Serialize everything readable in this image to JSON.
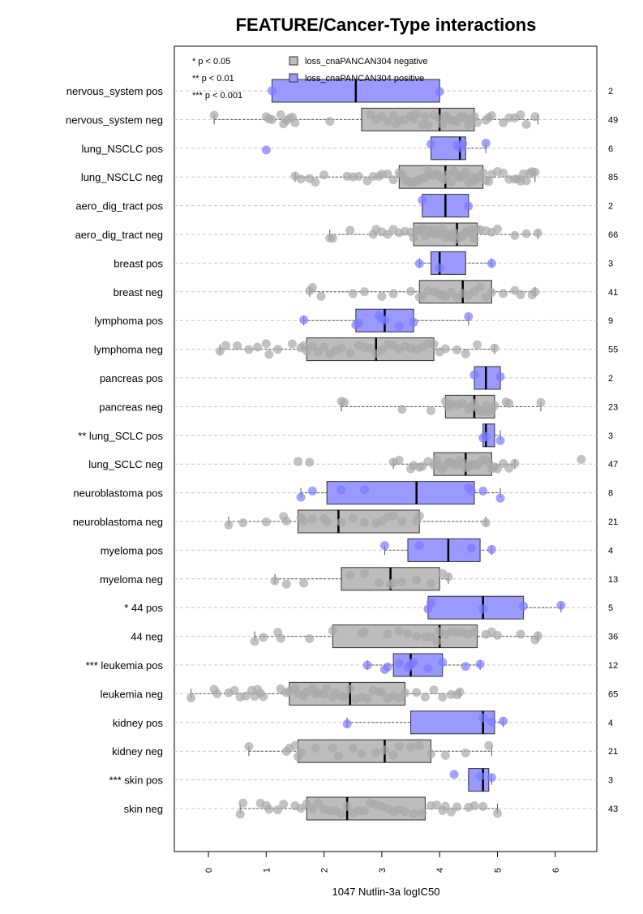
{
  "chart_data": {
    "type": "boxplot",
    "title": "FEATURE/Cancer-Type interactions",
    "xlabel": "1047 Nutlin-3a logIC50",
    "ylabel": "",
    "xlim": [
      -0.6,
      6.7
    ],
    "xticks": [
      0,
      1,
      2,
      3,
      4,
      5,
      6
    ],
    "grid": true,
    "significance_legend": [
      "* p < 0.05",
      "** p < 0.01",
      "*** p < 0.001"
    ],
    "legend_position": "top",
    "series": [
      {
        "name": "loss_cnaPANCAN304 negative",
        "color": "#bdbdbd",
        "point_color": "#a8a8a8"
      },
      {
        "name": "loss_cnaPANCAN304 positive",
        "color": "#9999ff",
        "point_color": "#7a7aff"
      }
    ],
    "groups": [
      {
        "label": "nervous_system pos",
        "series": "positive",
        "n": "2",
        "min": 1.1,
        "q1": 1.1,
        "median": 2.55,
        "q3": 4.0,
        "max": 4.0,
        "points": [
          1.1,
          4.0
        ]
      },
      {
        "label": "nervous_system neg",
        "series": "negative",
        "n": "49",
        "min": 0.1,
        "q1": 2.65,
        "median": 4.0,
        "q3": 4.6,
        "max": 5.7,
        "points": [
          0.1,
          1.0,
          1.05,
          1.1,
          1.25,
          1.3,
          1.35,
          1.4,
          1.45,
          1.5,
          2.1,
          2.8,
          2.9,
          3.0,
          3.1,
          3.2,
          3.3,
          3.4,
          3.5,
          3.6,
          3.7,
          3.8,
          3.9,
          4.0,
          4.05,
          4.1,
          4.15,
          4.2,
          4.3,
          4.35,
          4.4,
          4.5,
          4.55,
          4.6,
          4.8,
          4.85,
          4.9,
          5.1,
          5.2,
          5.3,
          5.4,
          5.5,
          5.65,
          3.25,
          3.55,
          3.75,
          4.25,
          4.45,
          4.65
        ]
      },
      {
        "label": "lung_NSCLC pos",
        "series": "positive",
        "n": "6",
        "min": 3.85,
        "q1": 3.85,
        "median": 4.35,
        "q3": 4.45,
        "max": 4.8,
        "points": [
          1.0,
          3.85,
          4.3,
          4.35,
          4.4,
          4.8
        ]
      },
      {
        "label": "lung_NSCLC neg",
        "series": "negative",
        "n": "85",
        "min": 1.5,
        "q1": 3.3,
        "median": 4.1,
        "q3": 4.75,
        "max": 5.65,
        "points": [
          1.5,
          1.6,
          1.75,
          1.85,
          2.0,
          2.4,
          2.5,
          2.6,
          2.75,
          2.85,
          2.95,
          3.0,
          3.1,
          3.2,
          3.3,
          3.35,
          3.4,
          3.45,
          3.5,
          3.55,
          3.6,
          3.65,
          3.7,
          3.75,
          3.8,
          3.85,
          3.9,
          3.95,
          4.0,
          4.05,
          4.1,
          4.15,
          4.2,
          4.25,
          4.3,
          4.35,
          4.4,
          4.45,
          4.5,
          4.55,
          4.6,
          4.65,
          4.7,
          4.75,
          4.8,
          4.85,
          4.9,
          5.0,
          5.1,
          5.2,
          5.3,
          5.35,
          5.4,
          5.45,
          5.5,
          5.55,
          5.6,
          5.65
        ]
      },
      {
        "label": "aero_dig_tract pos",
        "series": "positive",
        "n": "2",
        "min": 3.7,
        "q1": 3.7,
        "median": 4.1,
        "q3": 4.5,
        "max": 4.5,
        "points": [
          3.7,
          4.5
        ]
      },
      {
        "label": "aero_dig_tract neg",
        "series": "negative",
        "n": "66",
        "min": 2.1,
        "q1": 3.55,
        "median": 4.3,
        "q3": 4.65,
        "max": 5.7,
        "points": [
          2.1,
          2.15,
          2.45,
          2.85,
          2.9,
          3.0,
          3.1,
          3.2,
          3.3,
          3.4,
          3.5,
          3.55,
          3.6,
          3.65,
          3.7,
          3.75,
          3.8,
          3.85,
          3.9,
          3.95,
          4.0,
          4.05,
          4.1,
          4.15,
          4.2,
          4.25,
          4.3,
          4.35,
          4.4,
          4.45,
          4.5,
          4.55,
          4.6,
          4.65,
          4.7,
          4.8,
          4.9,
          5.0,
          5.3,
          5.5,
          5.7
        ]
      },
      {
        "label": "breast pos",
        "series": "positive",
        "n": "3",
        "min": 3.65,
        "q1": 3.85,
        "median": 4.0,
        "q3": 4.45,
        "max": 4.9,
        "points": [
          3.65,
          4.0,
          4.9
        ]
      },
      {
        "label": "breast neg",
        "series": "negative",
        "n": "41",
        "min": 1.75,
        "q1": 3.65,
        "median": 4.4,
        "q3": 4.9,
        "max": 5.65,
        "points": [
          1.75,
          1.8,
          1.95,
          2.5,
          2.7,
          3.0,
          3.2,
          3.5,
          3.65,
          3.7,
          3.8,
          3.9,
          4.0,
          4.05,
          4.1,
          4.2,
          4.3,
          4.4,
          4.5,
          4.6,
          4.7,
          4.8,
          4.9,
          5.1,
          5.3,
          5.4,
          5.6,
          5.65
        ]
      },
      {
        "label": "lymphoma pos",
        "series": "positive",
        "n": "9",
        "min": 1.65,
        "q1": 2.55,
        "median": 3.05,
        "q3": 3.55,
        "max": 4.5,
        "points": [
          1.65,
          2.55,
          2.6,
          2.95,
          3.0,
          3.05,
          3.3,
          3.55,
          4.5
        ]
      },
      {
        "label": "lymphoma neg",
        "series": "negative",
        "n": "55",
        "min": 0.2,
        "q1": 1.7,
        "median": 2.9,
        "q3": 3.9,
        "max": 4.95,
        "points": [
          0.2,
          0.3,
          0.5,
          0.7,
          0.85,
          1.0,
          1.05,
          1.2,
          1.45,
          1.6,
          1.65,
          1.7,
          1.8,
          1.9,
          2.0,
          2.1,
          2.2,
          2.3,
          2.45,
          2.6,
          2.7,
          2.8,
          2.9,
          3.0,
          3.1,
          3.2,
          3.3,
          3.4,
          3.5,
          3.6,
          3.7,
          3.8,
          3.9,
          4.0,
          4.1,
          4.3,
          4.45,
          4.65,
          4.95
        ]
      },
      {
        "label": "pancreas pos",
        "series": "positive",
        "n": "2",
        "min": 4.6,
        "q1": 4.6,
        "median": 4.8,
        "q3": 5.05,
        "max": 5.05,
        "points": [
          4.6,
          5.05
        ]
      },
      {
        "label": "pancreas neg",
        "series": "negative",
        "n": "23",
        "min": 2.3,
        "q1": 4.1,
        "median": 4.6,
        "q3": 4.95,
        "max": 5.75,
        "points": [
          2.3,
          2.35,
          3.35,
          3.85,
          4.1,
          4.15,
          4.2,
          4.3,
          4.4,
          4.5,
          4.55,
          4.6,
          4.65,
          4.7,
          4.75,
          4.8,
          4.85,
          4.9,
          4.95,
          5.15,
          5.2,
          5.75
        ]
      },
      {
        "label": "** lung_SCLC pos",
        "series": "positive",
        "n": "3",
        "min": 4.75,
        "q1": 4.75,
        "median": 4.8,
        "q3": 4.95,
        "max": 5.05,
        "points": [
          4.75,
          4.8,
          5.05
        ]
      },
      {
        "label": "lung_SCLC neg",
        "series": "negative",
        "n": "47",
        "min": 3.2,
        "q1": 3.9,
        "median": 4.45,
        "q3": 4.9,
        "max": 5.3,
        "points": [
          1.55,
          1.75,
          3.2,
          3.3,
          3.5,
          3.55,
          3.65,
          3.7,
          3.8,
          3.9,
          3.95,
          4.0,
          4.05,
          4.1,
          4.15,
          4.2,
          4.25,
          4.3,
          4.35,
          4.4,
          4.45,
          4.5,
          4.55,
          4.6,
          4.65,
          4.7,
          4.75,
          4.8,
          4.85,
          4.9,
          4.95,
          5.0,
          5.1,
          5.2,
          5.3,
          6.45
        ]
      },
      {
        "label": "neuroblastoma pos",
        "series": "positive",
        "n": "8",
        "min": 1.6,
        "q1": 2.05,
        "median": 3.6,
        "q3": 4.6,
        "max": 5.05,
        "points": [
          1.6,
          1.8,
          2.3,
          2.7,
          4.5,
          4.55,
          4.75,
          5.05
        ]
      },
      {
        "label": "neuroblastoma neg",
        "series": "negative",
        "n": "21",
        "min": 0.35,
        "q1": 1.55,
        "median": 2.25,
        "q3": 3.65,
        "max": 4.8,
        "points": [
          0.35,
          0.6,
          1.0,
          1.3,
          1.35,
          1.6,
          1.65,
          1.8,
          2.0,
          2.05,
          2.3,
          2.5,
          2.7,
          2.9,
          3.0,
          3.1,
          3.2,
          3.35,
          3.6,
          3.65,
          4.8
        ]
      },
      {
        "label": "myeloma pos",
        "series": "positive",
        "n": "4",
        "min": 3.05,
        "q1": 3.45,
        "median": 4.15,
        "q3": 4.7,
        "max": 4.9,
        "points": [
          3.05,
          3.65,
          4.55,
          4.9
        ]
      },
      {
        "label": "myeloma neg",
        "series": "negative",
        "n": "13",
        "min": 1.15,
        "q1": 2.3,
        "median": 3.15,
        "q3": 4.0,
        "max": 4.15,
        "points": [
          1.15,
          1.35,
          1.65,
          2.45,
          2.7,
          2.95,
          3.15,
          3.2,
          3.35,
          3.6,
          3.85,
          4.05,
          4.15
        ]
      },
      {
        "label": "* 44 pos",
        "series": "positive",
        "n": "5",
        "min": 3.8,
        "q1": 3.8,
        "median": 4.75,
        "q3": 5.45,
        "max": 6.1,
        "points": [
          3.8,
          3.85,
          4.75,
          5.45,
          6.1
        ]
      },
      {
        "label": "44 neg",
        "series": "negative",
        "n": "36",
        "min": 0.8,
        "q1": 2.15,
        "median": 4.0,
        "q3": 4.65,
        "max": 5.7,
        "points": [
          0.8,
          0.95,
          1.2,
          1.25,
          1.75,
          2.15,
          2.65,
          2.7,
          3.1,
          3.3,
          3.45,
          3.6,
          3.75,
          3.85,
          3.95,
          4.0,
          4.1,
          4.2,
          4.3,
          4.4,
          4.5,
          4.6,
          4.8,
          4.9,
          5.0,
          5.4,
          5.65,
          5.7
        ]
      },
      {
        "label": "*** leukemia pos",
        "series": "positive",
        "n": "12",
        "min": 2.75,
        "q1": 3.2,
        "median": 3.5,
        "q3": 4.05,
        "max": 4.7,
        "points": [
          2.75,
          3.05,
          3.1,
          3.3,
          3.45,
          3.5,
          3.55,
          3.8,
          4.05,
          4.45,
          4.7,
          3.5
        ]
      },
      {
        "label": "leukemia neg",
        "series": "negative",
        "n": "65",
        "min": -0.3,
        "q1": 1.4,
        "median": 2.45,
        "q3": 3.4,
        "max": 4.35,
        "points": [
          -0.3,
          0.1,
          0.15,
          0.35,
          0.45,
          0.55,
          0.65,
          0.75,
          0.8,
          0.85,
          0.9,
          0.95,
          1.25,
          1.35,
          1.4,
          1.5,
          1.55,
          1.65,
          1.7,
          1.8,
          1.85,
          1.9,
          2.0,
          2.05,
          2.15,
          2.2,
          2.3,
          2.35,
          2.45,
          2.55,
          2.65,
          2.75,
          2.85,
          2.95,
          3.0,
          3.1,
          3.2,
          3.3,
          3.4,
          3.6,
          3.75,
          3.9,
          4.05,
          4.2,
          4.3,
          4.35
        ]
      },
      {
        "label": "kidney pos",
        "series": "positive",
        "n": "4",
        "min": 2.4,
        "q1": 3.5,
        "median": 4.75,
        "q3": 4.95,
        "max": 5.1,
        "points": [
          2.4,
          4.75,
          4.9,
          5.1
        ]
      },
      {
        "label": "kidney neg",
        "series": "negative",
        "n": "21",
        "min": 0.7,
        "q1": 1.55,
        "median": 3.05,
        "q3": 3.85,
        "max": 4.9,
        "points": [
          0.7,
          1.35,
          1.4,
          1.5,
          1.55,
          1.6,
          1.85,
          2.15,
          2.25,
          2.5,
          2.65,
          2.9,
          3.05,
          3.2,
          3.3,
          3.5,
          3.65,
          3.85,
          4.1,
          4.45,
          4.85
        ]
      },
      {
        "label": "*** skin pos",
        "series": "positive",
        "n": "3",
        "min": 4.5,
        "q1": 4.5,
        "median": 4.75,
        "q3": 4.85,
        "max": 4.9,
        "points": [
          4.25,
          4.7,
          4.9
        ]
      },
      {
        "label": "skin neg",
        "series": "negative",
        "n": "43",
        "min": 0.55,
        "q1": 1.7,
        "median": 2.4,
        "q3": 3.75,
        "max": 5.0,
        "points": [
          0.55,
          0.6,
          0.9,
          1.0,
          1.05,
          1.2,
          1.3,
          1.5,
          1.6,
          1.7,
          1.8,
          1.9,
          2.0,
          2.1,
          2.2,
          2.3,
          2.4,
          2.5,
          2.6,
          2.7,
          2.8,
          2.9,
          3.0,
          3.1,
          3.2,
          3.3,
          3.4,
          3.55,
          3.7,
          3.85,
          3.95,
          4.05,
          4.1,
          4.2,
          4.3,
          4.5,
          4.6,
          4.75,
          5.0
        ]
      }
    ]
  }
}
